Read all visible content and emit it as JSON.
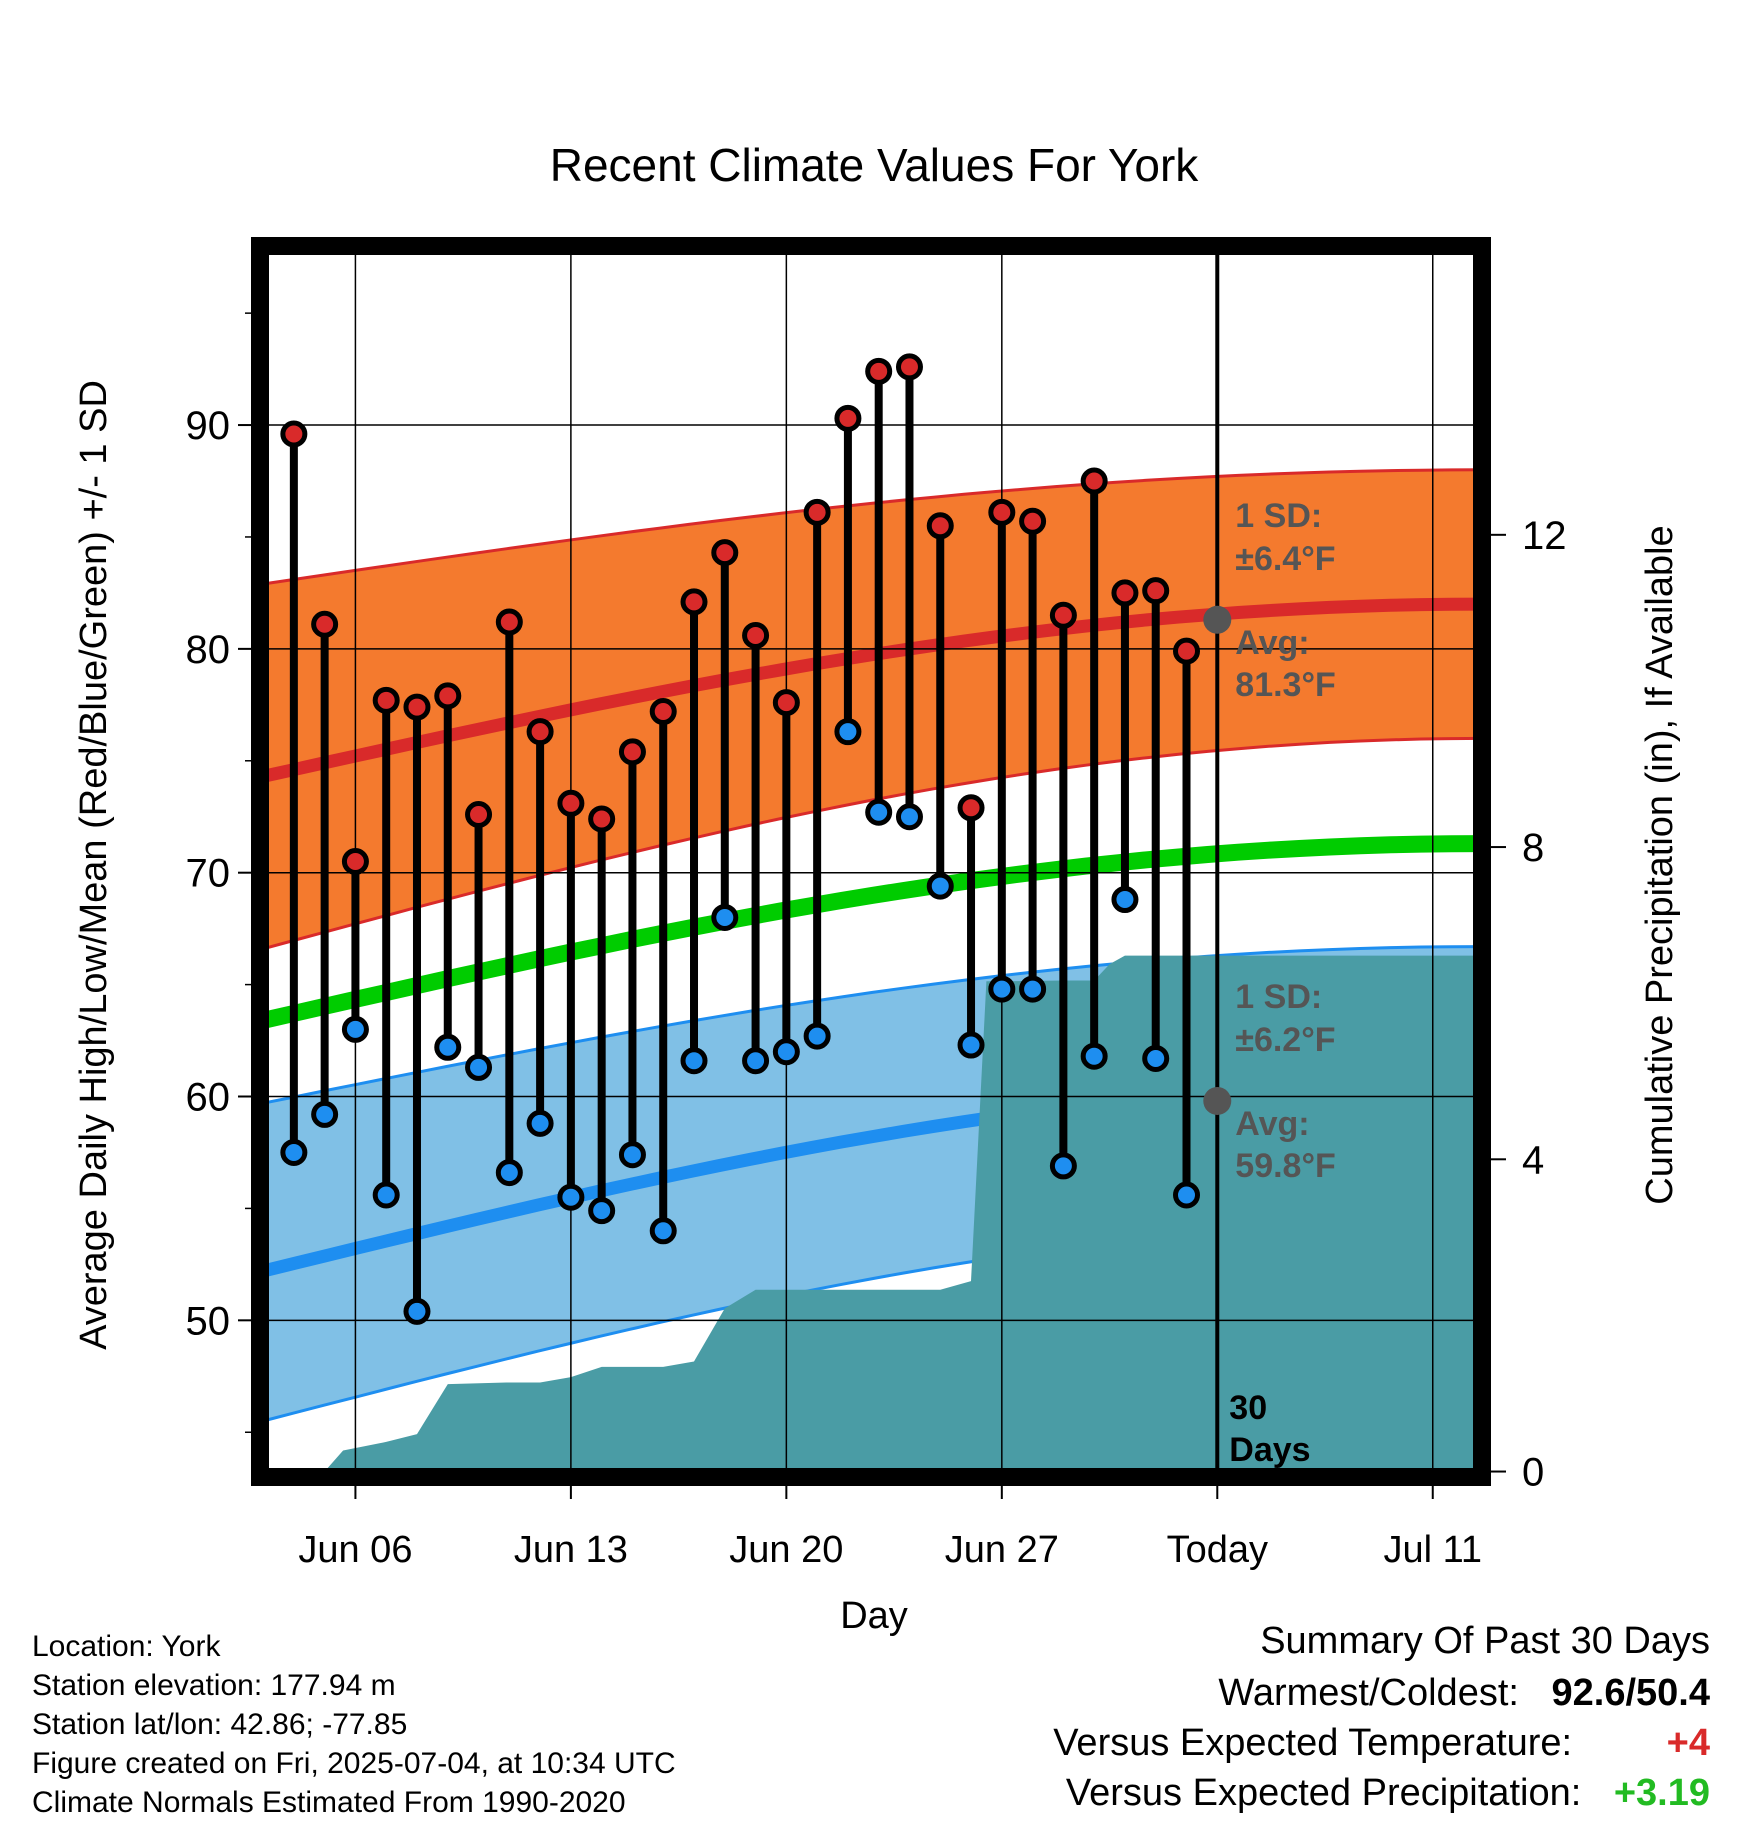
{
  "chart_data": {
    "type": "line",
    "title": "Recent Climate Values For York",
    "xlabel": "Day",
    "ylabel": "Average Daily High/Low/Mean (Red/Blue/Green) +/- 1 SD",
    "y2label": "Cumulative Precipitation (in), If Available",
    "x_ticks": [
      {
        "day": 6,
        "label": "Jun 06"
      },
      {
        "day": 13,
        "label": "Jun 13"
      },
      {
        "day": 20,
        "label": "Jun 20"
      },
      {
        "day": 27,
        "label": "Jun 27"
      },
      {
        "day": 34,
        "label": "Today"
      },
      {
        "day": 41,
        "label": "Jul 11"
      }
    ],
    "xlim": [
      2.9,
      42.6
    ],
    "ylim": [
      43,
      98
    ],
    "y_ticks": [
      50,
      60,
      70,
      80,
      90
    ],
    "y2lim": [
      -0.07,
      15.7
    ],
    "y2_ticks": [
      0,
      4,
      8,
      12
    ],
    "grid": true,
    "today_marker": {
      "day": 34,
      "label_line1": "30",
      "label_line2": "Days"
    },
    "normals": {
      "days": [
        3,
        42.6
      ],
      "high_mean": [
        74.3,
        82.0
      ],
      "high_band": [
        [
          66.6,
          82.9
        ],
        [
          76.0,
          88.0
        ]
      ],
      "low_mean": [
        52.2,
        60.7
      ],
      "low_band": [
        [
          45.5,
          59.7
        ],
        [
          54.5,
          66.7
        ]
      ],
      "mean_line": [
        63.4,
        71.3
      ]
    },
    "series": [
      {
        "name": "High",
        "color": "#d92a2a",
        "days": [
          4,
          5,
          6,
          7,
          8,
          9,
          10,
          11,
          12,
          13,
          14,
          15,
          16,
          17,
          18,
          19,
          20,
          21,
          22,
          23,
          24,
          25,
          26,
          27,
          28,
          29,
          30,
          31,
          32,
          33
        ],
        "values": [
          89.6,
          81.1,
          70.5,
          77.7,
          77.4,
          77.9,
          72.6,
          81.2,
          76.3,
          73.1,
          72.4,
          75.4,
          77.2,
          82.1,
          84.3,
          80.6,
          77.6,
          86.1,
          90.3,
          92.4,
          92.6,
          85.5,
          72.9,
          86.1,
          85.7,
          81.5,
          87.5,
          82.5,
          82.6,
          79.9
        ]
      },
      {
        "name": "Low",
        "color": "#1e8ef0",
        "days": [
          4,
          5,
          6,
          7,
          8,
          9,
          10,
          11,
          12,
          13,
          14,
          15,
          16,
          17,
          18,
          19,
          20,
          21,
          22,
          23,
          24,
          25,
          26,
          27,
          28,
          29,
          30,
          31,
          32,
          33
        ],
        "values": [
          57.5,
          59.2,
          63.0,
          55.6,
          50.4,
          62.2,
          61.3,
          56.6,
          58.8,
          55.5,
          54.9,
          57.4,
          54.0,
          61.6,
          68.0,
          61.6,
          62.0,
          62.7,
          76.3,
          72.7,
          72.5,
          69.4,
          62.3,
          64.8,
          64.8,
          56.9,
          61.8,
          68.8,
          61.7,
          55.6
        ]
      },
      {
        "name": "Cumulative Precipitation",
        "color": "#4a9ca5",
        "x": [
          5,
          5.6,
          7,
          8,
          9,
          10.9,
          12,
          13,
          14,
          16,
          17,
          18,
          19,
          24,
          25,
          26,
          26.5,
          27,
          29,
          30,
          30.5,
          31,
          34,
          42.6
        ],
        "values": [
          0,
          0.27,
          0.38,
          0.48,
          1.12,
          1.14,
          1.14,
          1.21,
          1.34,
          1.34,
          1.41,
          2.09,
          2.33,
          2.33,
          2.33,
          2.44,
          6.28,
          6.28,
          6.29,
          6.29,
          6.5,
          6.61,
          6.61,
          6.61
        ]
      }
    ],
    "annotations": {
      "high_sd_label": "1 SD:",
      "high_sd_value": "±6.4°F",
      "high_avg_label": "Avg:",
      "high_avg_value": "81.3°F",
      "high_avg": 81.3,
      "low_sd_label": "1 SD:",
      "low_sd_value": "±6.2°F",
      "low_avg_label": "Avg:",
      "low_avg_value": "59.8°F",
      "low_avg": 59.8
    },
    "colors": {
      "high_band": "#f47a2e",
      "high_line": "#d92a2a",
      "low_band": "#80c0e6",
      "low_line": "#1e8ef0",
      "mean_line": "#00cc00",
      "precip": "#4a9ca5",
      "annotation_text": "#555555",
      "marker_dot": "#555555"
    }
  },
  "footer": {
    "location": "Location: York",
    "elevation": "Station elevation: 177.94 m",
    "latlon": "Station lat/lon: 42.86; -77.85",
    "created": "Figure created on Fri, 2025-07-04, at 10:34 UTC",
    "normals": "Climate Normals Estimated From 1990-2020"
  },
  "summary": {
    "title": "Summary Of Past 30 Days",
    "warm_cold_label": "Warmest/Coldest:",
    "warm_cold_value": "92.6/50.4",
    "temp_label": "Versus Expected Temperature:",
    "temp_value": "+4",
    "temp_color": "#d92a2a",
    "precip_label": "Versus Expected Precipitation:",
    "precip_value": "+3.19",
    "precip_color": "#22bb22"
  }
}
